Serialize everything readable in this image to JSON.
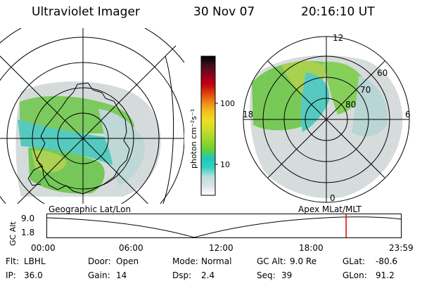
{
  "header": {
    "title": "Ultraviolet Imager",
    "date": "30 Nov 07",
    "time": "20:16:10 UT"
  },
  "colorbar": {
    "unit_label": "photon cm⁻²s⁻¹",
    "ticks": [
      "100",
      "10"
    ],
    "stops": [
      "#ffffff",
      "#dde4e4",
      "#b8e0e0",
      "#34d0c4",
      "#20c8b8",
      "#6cd230",
      "#9ad830",
      "#c8dc28",
      "#eee020",
      "#f4c020",
      "#f08818",
      "#e04010",
      "#c00010",
      "#900020",
      "#401020",
      "#000000"
    ]
  },
  "geo_panel": {
    "caption": "Geographic Lat/Lon"
  },
  "polar_panel": {
    "caption": "Apex MLat/MLT",
    "mlt_labels": [
      "12",
      "18",
      "6",
      "0"
    ],
    "mlat_labels": [
      "60",
      "70",
      "80"
    ]
  },
  "timeline": {
    "axis_label": "GC Alt",
    "y_labels": [
      "9.0",
      "1.8"
    ],
    "x_labels": [
      "00:00",
      "06:00",
      "12:00",
      "18:00",
      "23:59"
    ],
    "marker_time": "20:16:10",
    "marker_color": "#e00000"
  },
  "info": {
    "row1": [
      {
        "label": "Flt:",
        "value": "LBHL"
      },
      {
        "label": "Door:",
        "value": "Open"
      },
      {
        "label": "Mode:",
        "value": "Normal"
      },
      {
        "label": "GC Alt:",
        "value": "9.0 Re"
      },
      {
        "label": "GLat:",
        "value": "-80.6"
      }
    ],
    "row2": [
      {
        "label": "IP:",
        "value": "36.0"
      },
      {
        "label": "Gain:",
        "value": "14"
      },
      {
        "label": "Dsp:",
        "value": "2.4"
      },
      {
        "label": "Seq:",
        "value": "39"
      },
      {
        "label": "GLon:",
        "value": "91.2"
      }
    ]
  }
}
